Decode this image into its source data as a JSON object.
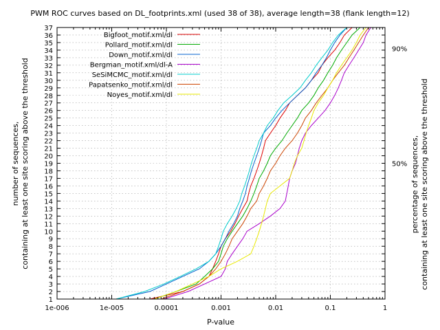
{
  "chart_data": {
    "type": "line",
    "title": "PWM ROC curves based on DL_footprints.xml (used 38 of 38), average length=38 (flank length=12)",
    "xlabel": "P-value",
    "ylabel_line1": "number of sequences,",
    "ylabel_line2": "containing at least one site scoring above the threshold",
    "y2label_line1": "percentage of sequences,",
    "y2label_line2": "containing at least one site scoring above the threshold",
    "x_scale": "log",
    "xlim": [
      1e-06,
      1
    ],
    "ylim": [
      1,
      37
    ],
    "x_ticks": [
      {
        "value": 1e-06,
        "label": "1e-006"
      },
      {
        "value": 1e-05,
        "label": "1e-005"
      },
      {
        "value": 0.0001,
        "label": "0.0001"
      },
      {
        "value": 0.001,
        "label": "0.001"
      },
      {
        "value": 0.01,
        "label": "0.01"
      },
      {
        "value": 0.1,
        "label": "0.1"
      },
      {
        "value": 1,
        "label": "1"
      }
    ],
    "y_ticks": [
      1,
      2,
      3,
      4,
      5,
      6,
      7,
      8,
      9,
      10,
      11,
      12,
      13,
      14,
      15,
      16,
      17,
      18,
      19,
      20,
      21,
      22,
      23,
      24,
      25,
      26,
      27,
      28,
      29,
      30,
      31,
      32,
      33,
      34,
      35,
      36,
      37
    ],
    "y2_ticks": [
      {
        "value": 19,
        "label": "50%"
      },
      {
        "value": 34.2,
        "label": "90%"
      }
    ],
    "grid": true,
    "legend_position": "top-left",
    "series": [
      {
        "name": "Bigfoot_motif.xml/dl",
        "color": "#dd0000",
        "points": [
          [
            5e-05,
            1
          ],
          [
            0.0002,
            2
          ],
          [
            0.0004,
            3
          ],
          [
            0.0006,
            4
          ],
          [
            0.0007,
            5
          ],
          [
            0.0008,
            6
          ],
          [
            0.0009,
            7
          ],
          [
            0.001,
            8
          ],
          [
            0.0012,
            9
          ],
          [
            0.0015,
            10
          ],
          [
            0.0018,
            11
          ],
          [
            0.0021,
            12
          ],
          [
            0.0025,
            13
          ],
          [
            0.003,
            14
          ],
          [
            0.0032,
            15
          ],
          [
            0.0035,
            16
          ],
          [
            0.004,
            17
          ],
          [
            0.0045,
            18
          ],
          [
            0.005,
            19
          ],
          [
            0.0055,
            20
          ],
          [
            0.006,
            21
          ],
          [
            0.0065,
            22
          ],
          [
            0.008,
            23
          ],
          [
            0.01,
            24
          ],
          [
            0.012,
            25
          ],
          [
            0.015,
            26
          ],
          [
            0.018,
            27
          ],
          [
            0.025,
            28
          ],
          [
            0.035,
            29
          ],
          [
            0.045,
            30
          ],
          [
            0.06,
            31
          ],
          [
            0.07,
            32
          ],
          [
            0.09,
            33
          ],
          [
            0.12,
            34
          ],
          [
            0.15,
            35
          ],
          [
            0.18,
            36
          ],
          [
            0.25,
            37
          ]
        ]
      },
      {
        "name": "Pollard_motif.xml/dl",
        "color": "#00aa00",
        "points": [
          [
            6e-05,
            1
          ],
          [
            0.00015,
            2
          ],
          [
            0.00035,
            3
          ],
          [
            0.0005,
            4
          ],
          [
            0.0007,
            5
          ],
          [
            0.0009,
            6
          ],
          [
            0.001,
            7
          ],
          [
            0.0011,
            8
          ],
          [
            0.0013,
            9
          ],
          [
            0.0016,
            10
          ],
          [
            0.002,
            11
          ],
          [
            0.0025,
            12
          ],
          [
            0.003,
            13
          ],
          [
            0.0035,
            14
          ],
          [
            0.004,
            15
          ],
          [
            0.0045,
            16
          ],
          [
            0.005,
            17
          ],
          [
            0.006,
            18
          ],
          [
            0.007,
            19
          ],
          [
            0.008,
            20
          ],
          [
            0.01,
            21
          ],
          [
            0.013,
            22
          ],
          [
            0.016,
            23
          ],
          [
            0.02,
            24
          ],
          [
            0.025,
            25
          ],
          [
            0.03,
            26
          ],
          [
            0.04,
            27
          ],
          [
            0.05,
            28
          ],
          [
            0.06,
            29
          ],
          [
            0.075,
            30
          ],
          [
            0.09,
            31
          ],
          [
            0.11,
            32
          ],
          [
            0.13,
            33
          ],
          [
            0.16,
            34
          ],
          [
            0.2,
            35
          ],
          [
            0.25,
            36
          ],
          [
            0.35,
            37
          ]
        ]
      },
      {
        "name": "Down_motif.xml/dl",
        "color": "#0060cc",
        "points": [
          [
            1.2e-05,
            1
          ],
          [
            5e-05,
            2
          ],
          [
            0.0001,
            3
          ],
          [
            0.0002,
            4
          ],
          [
            0.0004,
            5
          ],
          [
            0.0006,
            6
          ],
          [
            0.0008,
            7
          ],
          [
            0.001,
            8
          ],
          [
            0.0012,
            9
          ],
          [
            0.0014,
            10
          ],
          [
            0.0017,
            11
          ],
          [
            0.002,
            12
          ],
          [
            0.0022,
            13
          ],
          [
            0.0025,
            14
          ],
          [
            0.0028,
            15
          ],
          [
            0.003,
            16
          ],
          [
            0.0033,
            17
          ],
          [
            0.0036,
            18
          ],
          [
            0.004,
            19
          ],
          [
            0.0045,
            20
          ],
          [
            0.005,
            21
          ],
          [
            0.0055,
            22
          ],
          [
            0.006,
            23
          ],
          [
            0.008,
            24
          ],
          [
            0.01,
            25
          ],
          [
            0.013,
            26
          ],
          [
            0.018,
            27
          ],
          [
            0.025,
            28
          ],
          [
            0.035,
            29
          ],
          [
            0.045,
            30
          ],
          [
            0.055,
            31
          ],
          [
            0.07,
            32
          ],
          [
            0.085,
            33
          ],
          [
            0.1,
            34
          ],
          [
            0.12,
            35
          ],
          [
            0.15,
            36
          ],
          [
            0.2,
            37
          ]
        ]
      },
      {
        "name": "Bergman_motif.xml/dl-A",
        "color": "#aa00cc",
        "points": [
          [
            9e-05,
            1
          ],
          [
            0.00025,
            2
          ],
          [
            0.0005,
            3
          ],
          [
            0.001,
            4
          ],
          [
            0.0012,
            5
          ],
          [
            0.0013,
            6
          ],
          [
            0.0016,
            7
          ],
          [
            0.002,
            8
          ],
          [
            0.0025,
            9
          ],
          [
            0.003,
            10
          ],
          [
            0.005,
            11
          ],
          [
            0.008,
            12
          ],
          [
            0.012,
            13
          ],
          [
            0.015,
            14
          ],
          [
            0.016,
            15
          ],
          [
            0.017,
            16
          ],
          [
            0.018,
            17
          ],
          [
            0.02,
            18
          ],
          [
            0.023,
            19
          ],
          [
            0.025,
            20
          ],
          [
            0.027,
            21
          ],
          [
            0.03,
            22
          ],
          [
            0.035,
            23
          ],
          [
            0.045,
            24
          ],
          [
            0.06,
            25
          ],
          [
            0.08,
            26
          ],
          [
            0.1,
            27
          ],
          [
            0.12,
            28
          ],
          [
            0.14,
            29
          ],
          [
            0.16,
            30
          ],
          [
            0.18,
            31
          ],
          [
            0.22,
            32
          ],
          [
            0.27,
            33
          ],
          [
            0.33,
            34
          ],
          [
            0.4,
            35
          ],
          [
            0.45,
            36
          ],
          [
            0.55,
            37
          ]
        ]
      },
      {
        "name": "SeSiMCMC_motif.xml/dl",
        "color": "#00cccc",
        "points": [
          [
            1.2e-05,
            1
          ],
          [
            4e-05,
            2
          ],
          [
            9e-05,
            3
          ],
          [
            0.00018,
            4
          ],
          [
            0.00035,
            5
          ],
          [
            0.0006,
            6
          ],
          [
            0.0008,
            7
          ],
          [
            0.0009,
            8
          ],
          [
            0.001,
            9
          ],
          [
            0.0011,
            10
          ],
          [
            0.0013,
            11
          ],
          [
            0.0016,
            12
          ],
          [
            0.0019,
            13
          ],
          [
            0.0022,
            14
          ],
          [
            0.0024,
            15
          ],
          [
            0.0027,
            16
          ],
          [
            0.003,
            17
          ],
          [
            0.0033,
            18
          ],
          [
            0.0036,
            19
          ],
          [
            0.004,
            20
          ],
          [
            0.0045,
            21
          ],
          [
            0.005,
            22
          ],
          [
            0.006,
            23
          ],
          [
            0.007,
            24
          ],
          [
            0.009,
            25
          ],
          [
            0.011,
            26
          ],
          [
            0.014,
            27
          ],
          [
            0.02,
            28
          ],
          [
            0.028,
            29
          ],
          [
            0.035,
            30
          ],
          [
            0.045,
            31
          ],
          [
            0.055,
            32
          ],
          [
            0.07,
            33
          ],
          [
            0.09,
            34
          ],
          [
            0.11,
            35
          ],
          [
            0.14,
            36
          ],
          [
            0.2,
            37
          ]
        ]
      },
      {
        "name": "Papatsenko_motif.xml/dl",
        "color": "#cc4400",
        "points": [
          [
            8e-05,
            1
          ],
          [
            0.0002,
            2
          ],
          [
            0.0004,
            3
          ],
          [
            0.0006,
            4
          ],
          [
            0.0008,
            5
          ],
          [
            0.001,
            6
          ],
          [
            0.0012,
            7
          ],
          [
            0.0014,
            8
          ],
          [
            0.0016,
            9
          ],
          [
            0.002,
            10
          ],
          [
            0.0025,
            11
          ],
          [
            0.003,
            12
          ],
          [
            0.0035,
            13
          ],
          [
            0.0045,
            14
          ],
          [
            0.005,
            15
          ],
          [
            0.006,
            16
          ],
          [
            0.007,
            17
          ],
          [
            0.008,
            18
          ],
          [
            0.01,
            19
          ],
          [
            0.012,
            20
          ],
          [
            0.015,
            21
          ],
          [
            0.02,
            22
          ],
          [
            0.025,
            23
          ],
          [
            0.03,
            24
          ],
          [
            0.035,
            25
          ],
          [
            0.045,
            26
          ],
          [
            0.055,
            27
          ],
          [
            0.07,
            28
          ],
          [
            0.09,
            29
          ],
          [
            0.11,
            30
          ],
          [
            0.14,
            31
          ],
          [
            0.18,
            32
          ],
          [
            0.22,
            33
          ],
          [
            0.27,
            34
          ],
          [
            0.33,
            35
          ],
          [
            0.4,
            36
          ],
          [
            0.5,
            37
          ]
        ]
      },
      {
        "name": "Noyes_motif.xml/dl",
        "color": "#e8e800",
        "points": [
          [
            6e-05,
            1
          ],
          [
            0.00015,
            2
          ],
          [
            0.0003,
            3
          ],
          [
            0.0006,
            4
          ],
          [
            0.001,
            5
          ],
          [
            0.002,
            6
          ],
          [
            0.0035,
            7
          ],
          [
            0.004,
            8
          ],
          [
            0.0045,
            9
          ],
          [
            0.005,
            10
          ],
          [
            0.0055,
            11
          ],
          [
            0.006,
            12
          ],
          [
            0.0065,
            13
          ],
          [
            0.007,
            14
          ],
          [
            0.008,
            15
          ],
          [
            0.012,
            16
          ],
          [
            0.018,
            17
          ],
          [
            0.02,
            18
          ],
          [
            0.022,
            19
          ],
          [
            0.025,
            20
          ],
          [
            0.03,
            21
          ],
          [
            0.033,
            22
          ],
          [
            0.036,
            23
          ],
          [
            0.04,
            24
          ],
          [
            0.045,
            25
          ],
          [
            0.05,
            26
          ],
          [
            0.06,
            27
          ],
          [
            0.075,
            28
          ],
          [
            0.09,
            29
          ],
          [
            0.11,
            30
          ],
          [
            0.13,
            31
          ],
          [
            0.16,
            32
          ],
          [
            0.2,
            33
          ],
          [
            0.25,
            34
          ],
          [
            0.3,
            35
          ],
          [
            0.35,
            36
          ],
          [
            0.45,
            37
          ]
        ]
      }
    ]
  }
}
